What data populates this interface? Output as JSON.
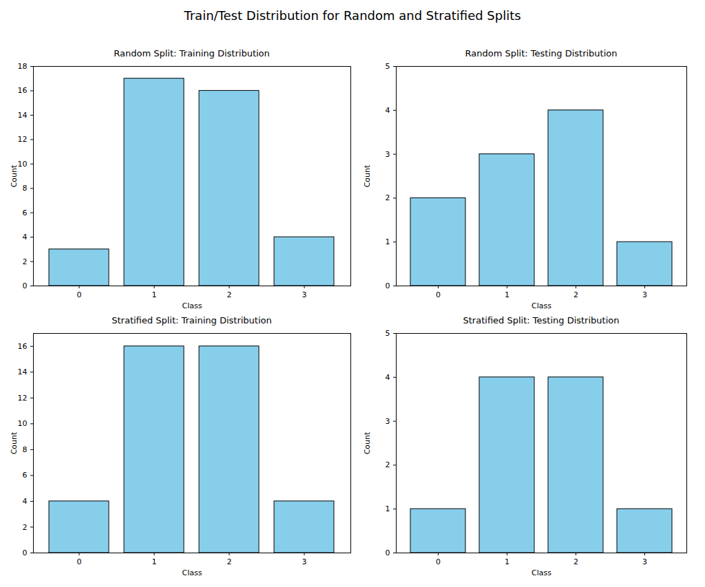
{
  "title": "Train/Test Distribution for Random and Stratified Splits",
  "chart_data": [
    {
      "type": "bar",
      "title": "Random Split: Training Distribution",
      "x_label": "Class",
      "y_label": "Count",
      "categories": [
        "0",
        "1",
        "2",
        "3"
      ],
      "values": [
        3,
        17,
        16,
        4
      ],
      "color": "#87ceeb",
      "ylim": [
        0,
        18
      ],
      "yticks": [
        0,
        2,
        4,
        6,
        8,
        10,
        12,
        14,
        16,
        18
      ]
    },
    {
      "type": "bar",
      "title": "Random Split: Testing Distribution",
      "x_label": "Class",
      "y_label": "Count",
      "categories": [
        "0",
        "1",
        "2",
        "3"
      ],
      "values": [
        2,
        3,
        4,
        1
      ],
      "color": "#87ceeb",
      "ylim": [
        0,
        5
      ],
      "yticks": [
        0,
        1,
        2,
        3,
        4,
        5
      ]
    },
    {
      "type": "bar",
      "title": "Stratified Split: Training Distribution",
      "x_label": "Class",
      "y_label": "Count",
      "categories": [
        "0",
        "1",
        "2",
        "3"
      ],
      "values": [
        4,
        16,
        16,
        4
      ],
      "color": "#87ceeb",
      "ylim": [
        0,
        17
      ],
      "yticks": [
        0,
        2,
        4,
        6,
        8,
        10,
        12,
        14,
        16
      ]
    },
    {
      "type": "bar",
      "title": "Stratified Split: Testing Distribution",
      "x_label": "Class",
      "y_label": "Count",
      "categories": [
        "0",
        "1",
        "2",
        "3"
      ],
      "values": [
        1,
        4,
        4,
        1
      ],
      "color": "#87ceeb",
      "ylim": [
        0,
        5
      ],
      "yticks": [
        0,
        1,
        2,
        3,
        4,
        5
      ]
    }
  ]
}
